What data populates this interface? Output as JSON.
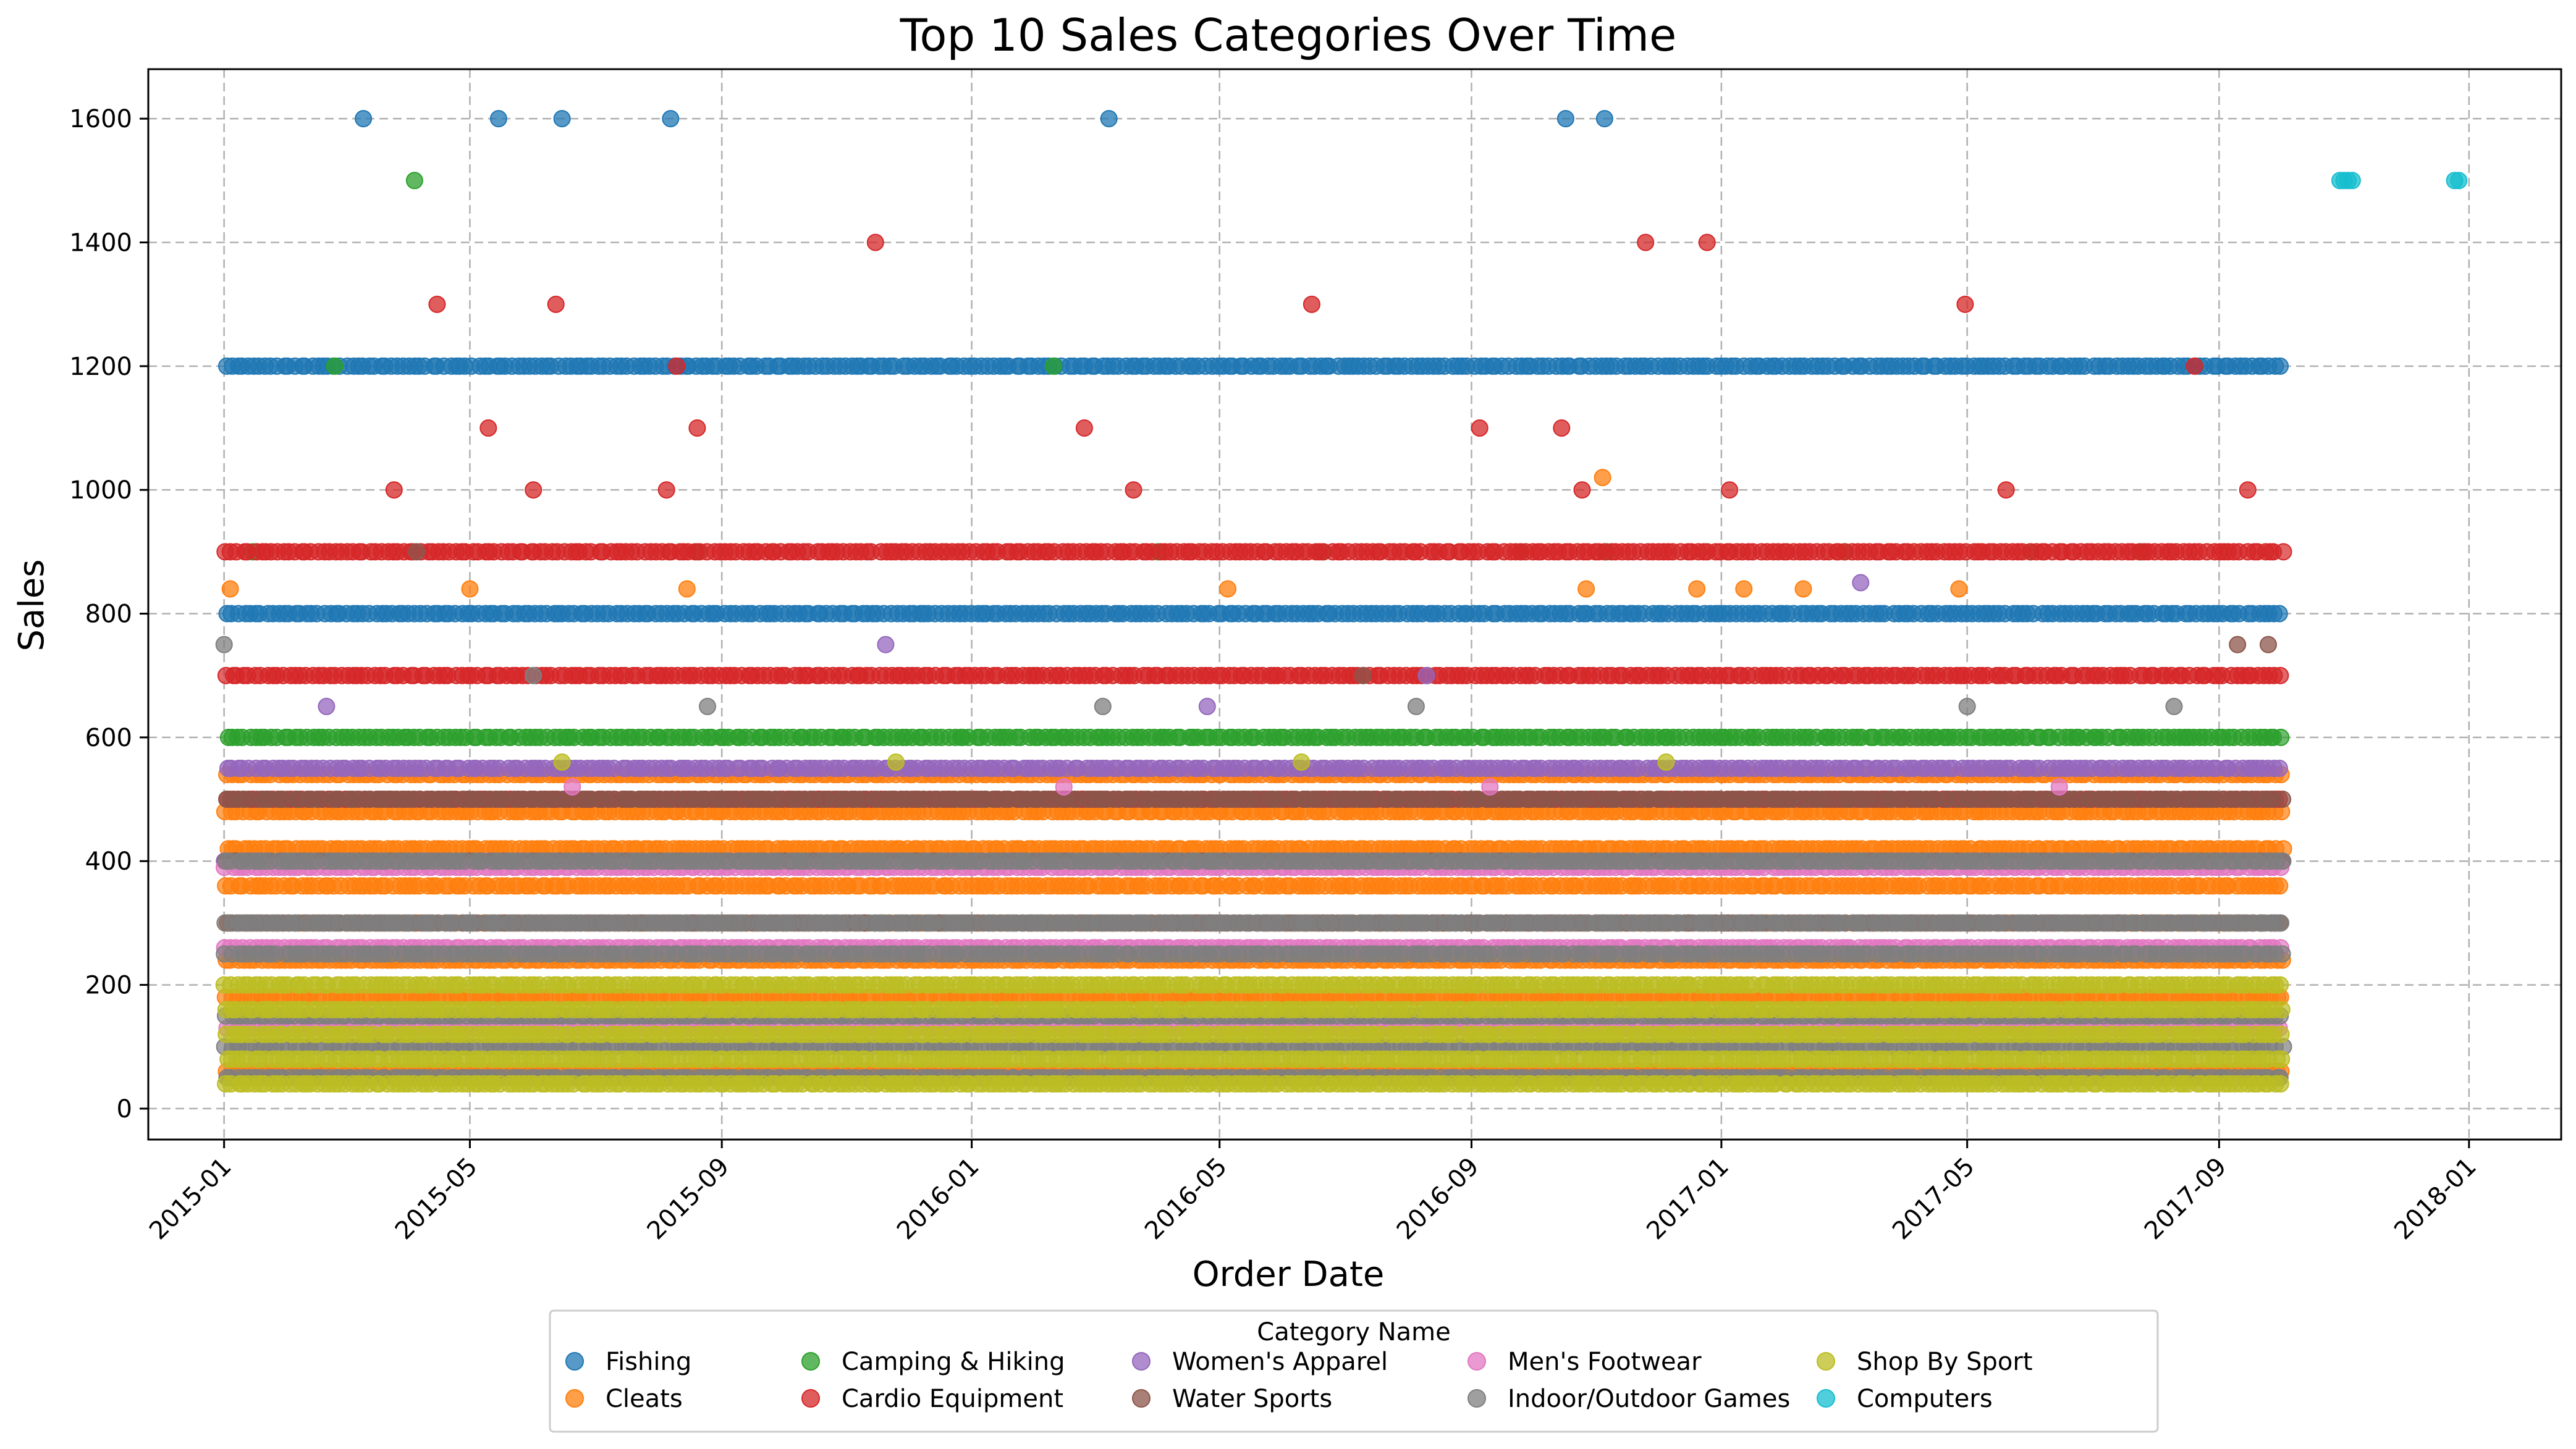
{
  "chart_data": {
    "type": "scatter",
    "title": "Top 10 Sales Categories Over Time",
    "xlabel": "Order Date",
    "ylabel": "Sales",
    "x_ticks": [
      "2015-01",
      "2015-05",
      "2015-09",
      "2016-01",
      "2016-05",
      "2016-09",
      "2017-01",
      "2017-05",
      "2017-09",
      "2018-01"
    ],
    "y_ticks": [
      "0",
      "200",
      "400",
      "600",
      "800",
      "1000",
      "1200",
      "1400",
      "1600"
    ],
    "xlim": [
      "2014-11-25",
      "2018-02-15"
    ],
    "ylim": [
      -50,
      1680
    ],
    "grid": true,
    "legend_title": "Category Name",
    "legend_position": "bottom-center",
    "series": [
      {
        "name": "Fishing",
        "color": "#1f77b4",
        "levels": [
          800,
          1200
        ],
        "points": [
          [
            "2015-03-10",
            1600
          ],
          [
            "2015-05-15",
            1600
          ],
          [
            "2015-06-15",
            1600
          ],
          [
            "2015-08-07",
            1600
          ],
          [
            "2016-03-08",
            1600
          ],
          [
            "2016-10-17",
            1600
          ],
          [
            "2016-11-05",
            1600
          ]
        ]
      },
      {
        "name": "Cleats",
        "color": "#ff7f0e",
        "levels": [
          60,
          180,
          240,
          300,
          360,
          420,
          480,
          540
        ],
        "points": [
          [
            "2015-01-04",
            840
          ],
          [
            "2015-05-01",
            840
          ],
          [
            "2015-08-15",
            840
          ],
          [
            "2016-05-05",
            840
          ],
          [
            "2016-10-27",
            840
          ],
          [
            "2016-11-04",
            1020
          ],
          [
            "2016-12-20",
            840
          ],
          [
            "2017-01-12",
            840
          ],
          [
            "2017-02-10",
            840
          ],
          [
            "2017-04-27",
            840
          ]
        ]
      },
      {
        "name": "Camping & Hiking",
        "color": "#2ca02c",
        "levels": [
          600
        ],
        "points": [
          [
            "2015-04-04",
            1500
          ],
          [
            "2015-02-24",
            1200
          ],
          [
            "2016-02-10",
            1200
          ],
          [
            "2015-01-15",
            900
          ],
          [
            "2015-08-20",
            900
          ],
          [
            "2016-04-01",
            900
          ],
          [
            "2016-06-20",
            900
          ],
          [
            "2016-09-25",
            900
          ],
          [
            "2016-11-06",
            900
          ],
          [
            "2017-03-02",
            900
          ],
          [
            "2017-06-01",
            900
          ],
          [
            "2017-07-25",
            900
          ]
        ]
      },
      {
        "name": "Cardio Equipment",
        "color": "#d62728",
        "levels": [
          500,
          700,
          900
        ],
        "points": [
          [
            "2015-04-15",
            1300
          ],
          [
            "2015-06-12",
            1300
          ],
          [
            "2016-06-15",
            1300
          ],
          [
            "2017-04-30",
            1300
          ],
          [
            "2015-11-15",
            1400
          ],
          [
            "2016-11-25",
            1400
          ],
          [
            "2016-12-25",
            1400
          ],
          [
            "2015-03-25",
            1000
          ],
          [
            "2015-06-01",
            1000
          ],
          [
            "2015-08-05",
            1000
          ],
          [
            "2016-03-20",
            1000
          ],
          [
            "2016-10-25",
            1000
          ],
          [
            "2017-01-05",
            1000
          ],
          [
            "2017-05-20",
            1000
          ],
          [
            "2017-09-15",
            1000
          ],
          [
            "2015-05-10",
            1100
          ],
          [
            "2015-08-20",
            1100
          ],
          [
            "2016-02-25",
            1100
          ],
          [
            "2016-09-05",
            1100
          ],
          [
            "2016-10-15",
            1100
          ],
          [
            "2015-08-10",
            1200
          ],
          [
            "2017-08-20",
            1200
          ]
        ]
      },
      {
        "name": "Women's Apparel",
        "color": "#9467bd",
        "levels": [
          400,
          550
        ],
        "points": [
          [
            "2015-11-20",
            750
          ],
          [
            "2017-03-10",
            850
          ],
          [
            "2015-02-20",
            650
          ],
          [
            "2016-04-25",
            650
          ],
          [
            "2016-08-10",
            700
          ]
        ]
      },
      {
        "name": "Water Sports",
        "color": "#8c564b",
        "levels": [
          300,
          400,
          500
        ],
        "points": [
          [
            "2017-09-10",
            750
          ],
          [
            "2017-09-25",
            750
          ],
          [
            "2015-04-05",
            900
          ],
          [
            "2016-07-10",
            700
          ]
        ]
      },
      {
        "name": "Men's Footwear",
        "color": "#e377c2",
        "levels": [
          130,
          260,
          390
        ],
        "points": [
          [
            "2015-06-20",
            520
          ],
          [
            "2016-02-15",
            520
          ],
          [
            "2016-09-10",
            520
          ],
          [
            "2017-06-15",
            520
          ]
        ]
      },
      {
        "name": "Indoor/Outdoor Games",
        "color": "#7f7f7f",
        "levels": [
          50,
          100,
          150,
          250,
          300,
          400
        ],
        "points": [
          [
            "2015-01-01",
            750
          ],
          [
            "2015-06-01",
            700
          ],
          [
            "2015-08-25",
            650
          ],
          [
            "2016-03-05",
            650
          ],
          [
            "2016-08-05",
            650
          ],
          [
            "2017-05-01",
            650
          ],
          [
            "2017-08-10",
            650
          ]
        ]
      },
      {
        "name": "Shop By Sport",
        "color": "#bcbd22",
        "levels": [
          40,
          80,
          120,
          160,
          200
        ],
        "points": [
          [
            "2015-06-15",
            560
          ],
          [
            "2015-11-25",
            560
          ],
          [
            "2016-06-10",
            560
          ],
          [
            "2016-12-05",
            560
          ]
        ]
      },
      {
        "name": "Computers",
        "color": "#17becf",
        "levels": [],
        "points": [
          [
            "2017-10-30",
            1500
          ],
          [
            "2017-11-01",
            1500
          ],
          [
            "2017-11-03",
            1500
          ],
          [
            "2017-11-05",
            1500
          ],
          [
            "2017-12-25",
            1500
          ],
          [
            "2017-12-27",
            1500
          ]
        ]
      }
    ]
  }
}
